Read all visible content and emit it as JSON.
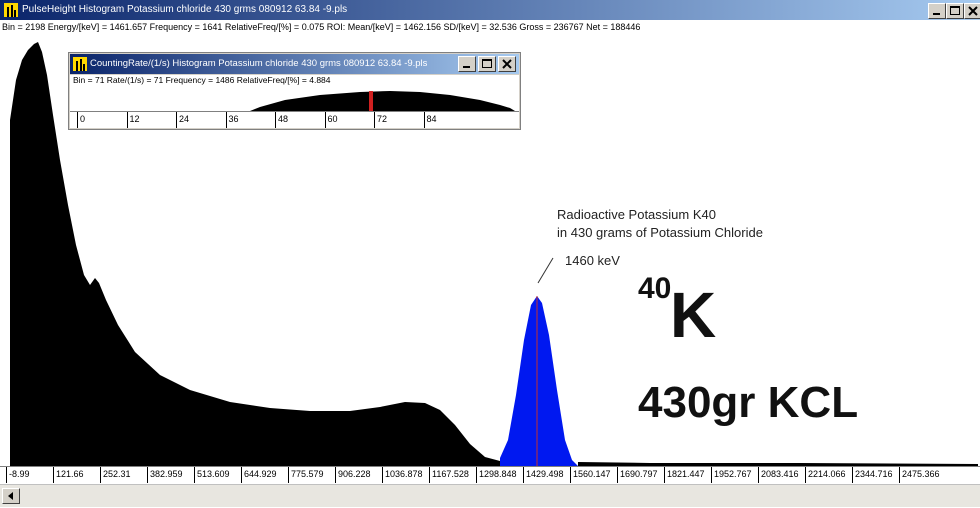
{
  "window": {
    "title": "PulseHeight Histogram   Potassium chloride 430 grms 080912 63.84 -9.pls",
    "status": "Bin = 2198  Energy/[keV] = 1461.657  Frequency = 1641  RelativeFreq/[%] = 0.075  ROI: Mean/[keV] = 1462.156  SD/[keV] = 32.536  Gross = 236767  Net = 188446"
  },
  "subwindow": {
    "title": "CountingRate/(1/s) Histogram   Potassium chloride 430 grms 080912 63.84 -9.pls",
    "status": "Bin = 71  Rate/(1/s) = 71  Frequency = 1486  RelativeFreq/[%] = 4.884",
    "axis_labels": [
      "0",
      "12",
      "24",
      "36",
      "48",
      "60",
      "72",
      "84"
    ]
  },
  "annotations": {
    "line1": "Radioactive Potassium K40",
    "line2": "in 430 grams of Potassium Chloride",
    "energy": "1460 keV",
    "isotope_mass": "40",
    "isotope_symbol": "K",
    "sample": "430gr KCL"
  },
  "axis_labels": [
    "-8.99",
    "121.66",
    "252.31",
    "382.959",
    "513.609",
    "644.929",
    "775.579",
    "906.228",
    "1036.878",
    "1167.528",
    "1298.848",
    "1429.498",
    "1560.147",
    "1690.797",
    "1821.447",
    "1952.767",
    "2083.416",
    "2214.066",
    "2344.716",
    "2475.366"
  ]
}
